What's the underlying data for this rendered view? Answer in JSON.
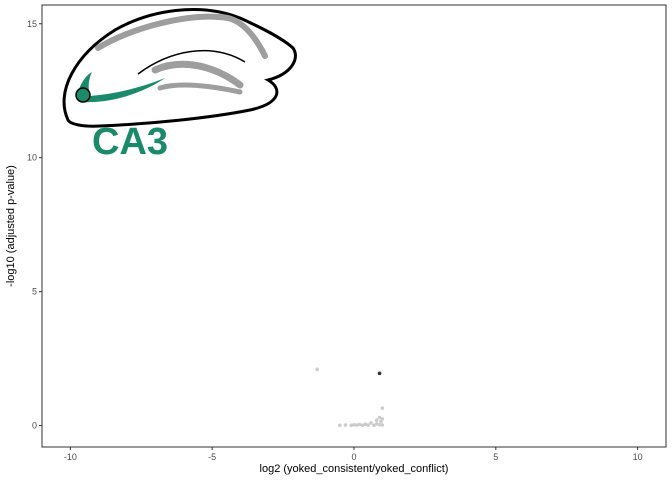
{
  "chart_data": {
    "type": "scatter",
    "xlabel": "log2 (yoked_consistent/yoked_conflict)",
    "ylabel": "-log10 (adjusted p-value)",
    "xlim": [
      -11,
      11
    ],
    "ylim": [
      -0.8,
      15.7
    ],
    "x_ticks": [
      -10,
      -5,
      0,
      5,
      10
    ],
    "y_ticks": [
      0,
      5,
      10,
      15
    ],
    "x_tick_labels": [
      "-10",
      "-5",
      "0",
      "5",
      "10"
    ],
    "y_tick_labels": [
      "0",
      "5",
      "10",
      "15"
    ],
    "grid": false,
    "legend": "none",
    "annotation": {
      "text": "CA3",
      "color": "#1b8a6b"
    },
    "inset": "hippocampus-icon",
    "colors": {
      "not_significant": "#cccccc",
      "significant": "#333333",
      "hippocampus_outline": "#000000",
      "hippocampus_fill": "#9e9e9e",
      "ca3_highlight": "#1b8a6b"
    },
    "series": [
      {
        "color": "#cccccc",
        "points": [
          [
            -1.3,
            2.1
          ],
          [
            1.0,
            0.65
          ],
          [
            0.9,
            0.3
          ],
          [
            1.0,
            0.25
          ],
          [
            0.8,
            0.2
          ],
          [
            -0.5,
            0.01
          ],
          [
            -0.3,
            0.02
          ],
          [
            -0.1,
            0.01
          ],
          [
            0.1,
            0.02
          ],
          [
            0.3,
            0.01
          ],
          [
            0.5,
            0.02
          ],
          [
            0.7,
            0.01
          ],
          [
            0.9,
            0.03
          ],
          [
            1.0,
            0.02
          ],
          [
            0.6,
            0.1
          ],
          [
            0.95,
            0.15
          ],
          [
            0.4,
            0.05
          ],
          [
            0.0,
            0.03
          ],
          [
            0.2,
            0.04
          ],
          [
            0.8,
            0.06
          ]
        ]
      },
      {
        "color": "#333333",
        "points": [
          [
            0.9,
            1.95
          ]
        ]
      }
    ]
  }
}
